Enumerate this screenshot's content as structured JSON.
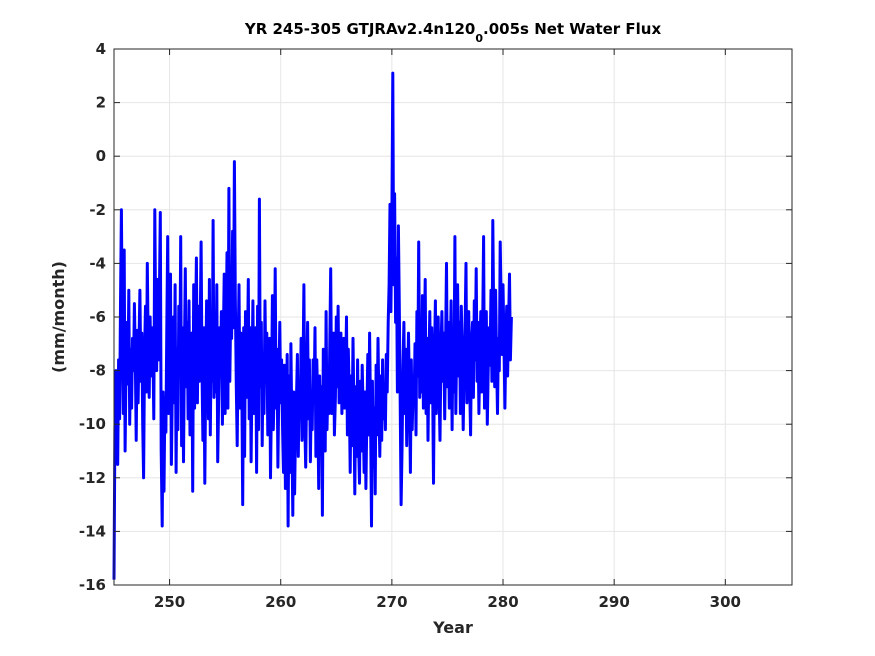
{
  "chart_data": {
    "type": "line",
    "title_main": "YR 245-305 GTJRAv2.4n120",
    "title_sub": "0",
    "title_tail": ".005s Net Water Flux",
    "xlabel": "Year",
    "ylabel": "(mm/month)",
    "xlim": [
      245,
      306
    ],
    "ylim": [
      -16,
      4
    ],
    "xticks": [
      250,
      260,
      270,
      280,
      290,
      300
    ],
    "yticks": [
      -16,
      -14,
      -12,
      -10,
      -8,
      -6,
      -4,
      -2,
      0,
      2,
      4
    ],
    "grid": true,
    "series": [
      {
        "color": "#0000ff",
        "x_start": 245.0,
        "x_step": 0.0833333,
        "values": [
          -15.8,
          -10.2,
          -8.0,
          -10.5,
          -11.5,
          -7.6,
          -9.8,
          -5.5,
          -2.0,
          -6.4,
          -9.6,
          -3.5,
          -11.0,
          -8.0,
          -6.2,
          -8.5,
          -5.0,
          -10.0,
          -7.2,
          -9.4,
          -6.8,
          -8.0,
          -5.5,
          -7.5,
          -10.6,
          -6.5,
          -9.2,
          -7.0,
          -5.0,
          -8.4,
          -6.6,
          -10.0,
          -12.0,
          -7.2,
          -5.6,
          -8.8,
          -4.0,
          -7.4,
          -9.0,
          -6.0,
          -8.2,
          -6.4,
          -7.2,
          -9.8,
          -2.0,
          -6.5,
          -8.0,
          -4.6,
          -7.6,
          -5.2,
          -2.1,
          -11.0,
          -13.8,
          -8.8,
          -12.5,
          -9.0,
          -10.3,
          -6.4,
          -3.0,
          -9.6,
          -7.8,
          -4.4,
          -11.5,
          -8.4,
          -6.0,
          -9.2,
          -4.8,
          -11.8,
          -7.2,
          -10.2,
          -5.6,
          -8.2,
          -3.0,
          -10.8,
          -6.4,
          -11.4,
          -7.4,
          -4.2,
          -8.6,
          -6.2,
          -9.8,
          -5.4,
          -10.4,
          -8.6,
          -6.6,
          -12.5,
          -4.8,
          -9.4,
          -6.6,
          -3.8,
          -9.2,
          -5.6,
          -8.4,
          -6.8,
          -3.2,
          -8.0,
          -10.6,
          -6.4,
          -12.2,
          -8.2,
          -5.4,
          -7.6,
          -9.8,
          -4.6,
          -10.4,
          -6.6,
          -8.4,
          -2.4,
          -9.0,
          -6.2,
          -8.8,
          -4.8,
          -11.4,
          -9.0,
          -6.4,
          -8.2,
          -5.8,
          -10.0,
          -7.0,
          -4.4,
          -9.6,
          -6.8,
          -3.6,
          -9.4,
          -1.2,
          -8.4,
          -5.8,
          -6.8,
          -2.8,
          -6.4,
          -0.2,
          -5.2,
          -8.6,
          -10.8,
          -7.2,
          -4.8,
          -9.4,
          -6.6,
          -8.4,
          -13.0,
          -6.4,
          -11.2,
          -5.8,
          -9.0,
          -7.6,
          -4.6,
          -9.8,
          -6.4,
          -11.4,
          -8.2,
          -5.4,
          -9.6,
          -7.0,
          -6.4,
          -11.8,
          -5.6,
          -10.2,
          -1.6,
          -8.6,
          -6.2,
          -10.8,
          -7.4,
          -9.6,
          -5.4,
          -8.4,
          -6.6,
          -10.4,
          -8.8,
          -6.8,
          -12.0,
          -9.0,
          -5.2,
          -10.2,
          -8.6,
          -4.2,
          -9.4,
          -7.2,
          -11.6,
          -8.4,
          -6.2,
          -9.2,
          -7.6,
          -10.2,
          -11.8,
          -7.8,
          -12.4,
          -9.6,
          -7.4,
          -13.8,
          -8.2,
          -11.8,
          -7.0,
          -10.0,
          -13.4,
          -8.8,
          -12.6,
          -10.2,
          -9.0,
          -7.4,
          -11.2,
          -8.6,
          -9.8,
          -6.8,
          -10.6,
          -8.0,
          -4.8,
          -10.0,
          -11.6,
          -8.4,
          -6.2,
          -9.8,
          -7.6,
          -11.4,
          -8.8,
          -10.2,
          -7.6,
          -9.0,
          -6.4,
          -11.2,
          -7.6,
          -9.4,
          -12.4,
          -8.2,
          -10.0,
          -8.6,
          -13.4,
          -7.2,
          -9.6,
          -11.0,
          -5.8,
          -10.2,
          -8.4,
          -9.6,
          -7.0,
          -4.2,
          -9.6,
          -8.0,
          -6.6,
          -10.4,
          -9.0,
          -6.0,
          -8.6,
          -5.6,
          -9.2,
          -8.0,
          -6.6,
          -9.6,
          -7.4,
          -6.8,
          -9.4,
          -8.2,
          -6.0,
          -10.4,
          -7.2,
          -9.0,
          -11.8,
          -8.2,
          -10.8,
          -6.8,
          -9.4,
          -12.6,
          -8.6,
          -11.2,
          -7.6,
          -10.6,
          -12.2,
          -8.4,
          -11.0,
          -7.8,
          -9.6,
          -11.8,
          -8.8,
          -12.4,
          -9.6,
          -7.4,
          -10.4,
          -6.6,
          -9.8,
          -13.8,
          -8.4,
          -11.6,
          -9.4,
          -12.6,
          -7.8,
          -10.4,
          -6.8,
          -9.2,
          -11.2,
          -8.2,
          -10.6,
          -7.6,
          -9.8,
          -8.6,
          -10.2,
          -7.4,
          -8.8,
          -6.2,
          -4.8,
          -1.8,
          -5.8,
          -2.2,
          3.1,
          -4.8,
          -1.4,
          -6.2,
          -3.8,
          -8.8,
          -2.6,
          -5.6,
          -9.2,
          -13.0,
          -10.8,
          -7.8,
          -6.2,
          -9.6,
          -7.2,
          -10.8,
          -8.6,
          -6.6,
          -9.0,
          -11.8,
          -7.6,
          -10.2,
          -8.4,
          -9.2,
          -7.0,
          -10.4,
          -5.8,
          -8.2,
          -3.2,
          -9.0,
          -6.2,
          -8.8,
          -5.2,
          -9.4,
          -7.0,
          -4.6,
          -9.6,
          -6.8,
          -10.6,
          -7.8,
          -5.8,
          -9.2,
          -6.4,
          -8.4,
          -12.2,
          -7.4,
          -5.4,
          -9.6,
          -7.6,
          -6.0,
          -8.8,
          -10.6,
          -7.2,
          -5.8,
          -8.4,
          -6.6,
          -9.8,
          -7.0,
          -4.0,
          -8.6,
          -6.2,
          -9.4,
          -7.8,
          -5.4,
          -10.2,
          -6.6,
          -8.8,
          -3.0,
          -9.6,
          -7.0,
          -4.8,
          -8.2,
          -6.2,
          -9.6,
          -5.6,
          -7.4,
          -10.2,
          -8.0,
          -6.6,
          -4.0,
          -9.2,
          -7.4,
          -5.8,
          -8.6,
          -10.4,
          -7.0,
          -6.2,
          -9.0,
          -5.4,
          -7.6,
          -4.2,
          -8.4,
          -6.2,
          -9.6,
          -7.2,
          -5.8,
          -8.8,
          -6.6,
          -3.0,
          -9.4,
          -7.6,
          -5.8,
          -10.0,
          -8.0,
          -6.4,
          -7.8,
          -5.0,
          -8.4,
          -2.4,
          -6.4,
          -8.6,
          -5.0,
          -7.4,
          -9.6,
          -6.8,
          -8.0,
          -3.2,
          -5.6,
          -7.4,
          -4.8,
          -6.8,
          -9.4,
          -7.0,
          -5.6,
          -8.2,
          -6.2,
          -4.4,
          -7.6,
          -6.0
        ]
      }
    ]
  }
}
